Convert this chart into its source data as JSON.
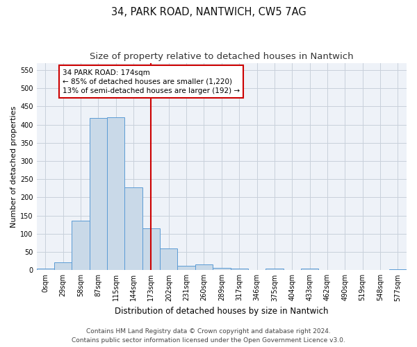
{
  "title_line1": "34, PARK ROAD, NANTWICH, CW5 7AG",
  "title_line2": "Size of property relative to detached houses in Nantwich",
  "xlabel": "Distribution of detached houses by size in Nantwich",
  "ylabel": "Number of detached properties",
  "bar_labels": [
    "0sqm",
    "29sqm",
    "58sqm",
    "87sqm",
    "115sqm",
    "144sqm",
    "173sqm",
    "202sqm",
    "231sqm",
    "260sqm",
    "289sqm",
    "317sqm",
    "346sqm",
    "375sqm",
    "404sqm",
    "433sqm",
    "462sqm",
    "490sqm",
    "519sqm",
    "548sqm",
    "577sqm"
  ],
  "bar_values": [
    5,
    22,
    137,
    418,
    420,
    227,
    116,
    59,
    12,
    15,
    7,
    5,
    0,
    4,
    0,
    4,
    0,
    0,
    0,
    0,
    3
  ],
  "bar_color": "#c9d9e8",
  "bar_edge_color": "#5b9bd5",
  "annotation_line_color": "#cc0000",
  "annotation_box_text": "34 PARK ROAD: 174sqm\n← 85% of detached houses are smaller (1,220)\n13% of semi-detached houses are larger (192) →",
  "ylim": [
    0,
    570
  ],
  "yticks": [
    0,
    50,
    100,
    150,
    200,
    250,
    300,
    350,
    400,
    450,
    500,
    550
  ],
  "grid_color": "#c8d0db",
  "background_color": "#eef2f8",
  "footer_line1": "Contains HM Land Registry data © Crown copyright and database right 2024.",
  "footer_line2": "Contains public sector information licensed under the Open Government Licence v3.0.",
  "title_fontsize": 10.5,
  "subtitle_fontsize": 9.5,
  "xlabel_fontsize": 8.5,
  "ylabel_fontsize": 8,
  "tick_fontsize": 7,
  "footer_fontsize": 6.5,
  "annotation_fontsize": 7.5
}
